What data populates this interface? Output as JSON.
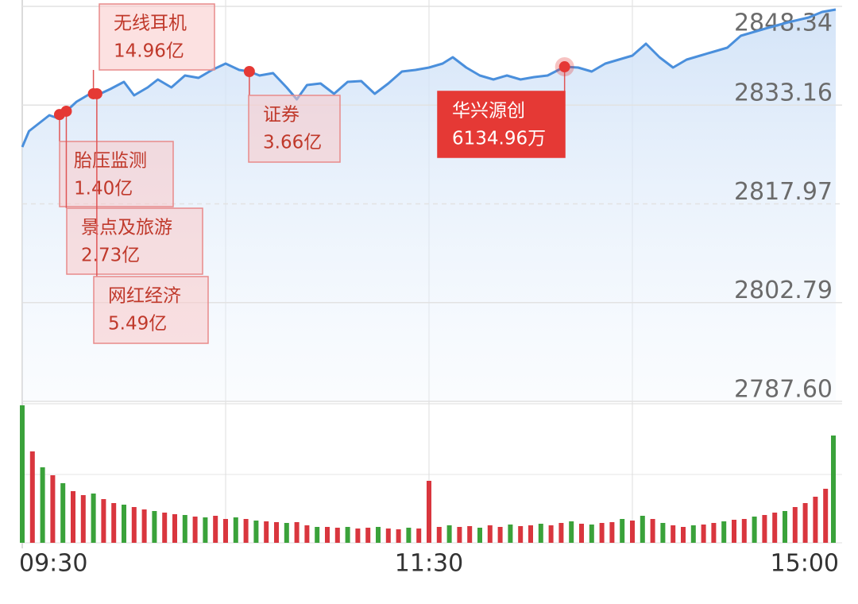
{
  "chart_data": {
    "type": "line",
    "series": [
      {
        "color": "#4a8fdc",
        "x": [
          0,
          2,
          5,
          8,
          10,
          13,
          16,
          20,
          23,
          26,
          30,
          33,
          37,
          40,
          44,
          48,
          52,
          56,
          60,
          64,
          67,
          70,
          74,
          78,
          81,
          84,
          88,
          92,
          96,
          100,
          104,
          108,
          112,
          116,
          120,
          124,
          127,
          131,
          135,
          139,
          143,
          147,
          151,
          155,
          160,
          164,
          168,
          172,
          176,
          180,
          184,
          188,
          192,
          196,
          200,
          204,
          208,
          212,
          216,
          220,
          226,
          232,
          236,
          240
        ],
        "values": [
          2826.71,
          2829.15,
          2830.37,
          2831.6,
          2831.23,
          2832.21,
          2833.67,
          2834.9,
          2834.9,
          2835.63,
          2836.73,
          2834.65,
          2835.87,
          2837.1,
          2835.87,
          2837.71,
          2837.34,
          2838.56,
          2839.54,
          2838.56,
          2838.32,
          2837.71,
          2838.07,
          2835.87,
          2834.04,
          2836.24,
          2836.48,
          2834.9,
          2836.73,
          2836.85,
          2834.9,
          2836.48,
          2838.32,
          2838.56,
          2838.93,
          2839.54,
          2840.52,
          2838.93,
          2837.71,
          2837.1,
          2837.71,
          2837.1,
          2837.46,
          2837.71,
          2839.05,
          2838.93,
          2838.32,
          2839.54,
          2840.15,
          2840.76,
          2842.6,
          2840.52,
          2838.93,
          2840.15,
          2840.76,
          2841.37,
          2841.98,
          2843.82,
          2844.43,
          2845.04,
          2845.9,
          2846.63,
          2847.48,
          2847.85
        ]
      }
    ],
    "xlim": [
      0,
      240
    ],
    "xticks": [
      {
        "value": 0,
        "label": "09:30"
      },
      {
        "value": 120,
        "label": "11:30"
      },
      {
        "value": 240,
        "label": "15:00"
      }
    ],
    "ylim": [
      2787.6,
      2848.34
    ],
    "yticks": [
      2848.34,
      2833.16,
      2817.97,
      2802.79,
      {
        "value": 2787.6,
        "label": "2787.60"
      }
    ],
    "grid": true,
    "annotations": [
      {
        "label": "胎压监测",
        "amount": "1.40亿",
        "x": 11,
        "y": 2831.7
      },
      {
        "label": "无线耳机",
        "amount": "14.96亿",
        "x": 21,
        "y": 2834.9
      },
      {
        "label": "景点及旅游",
        "amount": "2.73亿",
        "x": 13,
        "y": 2832.21
      },
      {
        "label": "网红经济",
        "amount": "5.49亿",
        "x": 22,
        "y": 2834.9
      },
      {
        "label": "证券",
        "amount": "3.66亿",
        "x": 67,
        "y": 2838.32
      },
      {
        "label": "华兴源创",
        "amount": "6134.96万",
        "x": 160,
        "y": 2839.05,
        "highlight": true
      }
    ],
    "volume": {
      "x": [
        0,
        3,
        6,
        9,
        12,
        15,
        18,
        21,
        24,
        27,
        30,
        33,
        36,
        39,
        42,
        45,
        48,
        51,
        54,
        57,
        60,
        63,
        66,
        69,
        72,
        75,
        78,
        81,
        84,
        87,
        90,
        93,
        96,
        99,
        102,
        105,
        108,
        111,
        114,
        117,
        120,
        123,
        126,
        129,
        132,
        135,
        138,
        141,
        144,
        147,
        150,
        153,
        156,
        159,
        162,
        165,
        168,
        171,
        174,
        177,
        180,
        183,
        186,
        189,
        192,
        195,
        198,
        201,
        204,
        207,
        210,
        213,
        216,
        219,
        222,
        225,
        228,
        231,
        234,
        237,
        240
      ],
      "values": [
        173,
        115,
        95,
        85,
        75,
        65,
        60,
        62,
        55,
        50,
        48,
        45,
        42,
        40,
        38,
        36,
        35,
        33,
        32,
        34,
        30,
        32,
        30,
        28,
        27,
        26,
        25,
        26,
        22,
        20,
        20,
        19,
        20,
        18,
        19,
        20,
        18,
        17,
        19,
        18,
        78,
        20,
        22,
        20,
        21,
        19,
        22,
        20,
        23,
        21,
        22,
        24,
        22,
        25,
        27,
        24,
        23,
        25,
        26,
        30,
        28,
        34,
        30,
        25,
        22,
        20,
        22,
        23,
        25,
        27,
        29,
        30,
        33,
        35,
        38,
        40,
        45,
        50,
        58,
        68,
        135
      ],
      "colors": [
        "#3aa23a",
        "#d9363e",
        "#3aa23a",
        "#d9363e",
        "#3aa23a",
        "#d9363e",
        "#d9363e",
        "#3aa23a",
        "#d9363e",
        "#d9363e",
        "#3aa23a",
        "#d9363e",
        "#d9363e",
        "#3aa23a",
        "#d9363e",
        "#d9363e",
        "#3aa23a",
        "#d9363e",
        "#3aa23a",
        "#d9363e",
        "#d9363e",
        "#3aa23a",
        "#d9363e",
        "#3aa23a",
        "#d9363e",
        "#d9363e",
        "#3aa23a",
        "#d9363e",
        "#d9363e",
        "#3aa23a",
        "#d9363e",
        "#d9363e",
        "#3aa23a",
        "#d9363e",
        "#d9363e",
        "#3aa23a",
        "#d9363e",
        "#d9363e",
        "#3aa23a",
        "#d9363e",
        "#d9363e",
        "#d9363e",
        "#3aa23a",
        "#d9363e",
        "#d9363e",
        "#3aa23a",
        "#d9363e",
        "#d9363e",
        "#3aa23a",
        "#d9363e",
        "#d9363e",
        "#3aa23a",
        "#d9363e",
        "#d9363e",
        "#3aa23a",
        "#d9363e",
        "#3aa23a",
        "#d9363e",
        "#d9363e",
        "#3aa23a",
        "#d9363e",
        "#3aa23a",
        "#d9363e",
        "#3aa23a",
        "#d9363e",
        "#d9363e",
        "#3aa23a",
        "#d9363e",
        "#d9363e",
        "#3aa23a",
        "#d9363e",
        "#d9363e",
        "#3aa23a",
        "#d9363e",
        "#d9363e",
        "#3aa23a",
        "#d9363e",
        "#d9363e",
        "#d9363e",
        "#d9363e",
        "#3aa23a"
      ]
    }
  }
}
